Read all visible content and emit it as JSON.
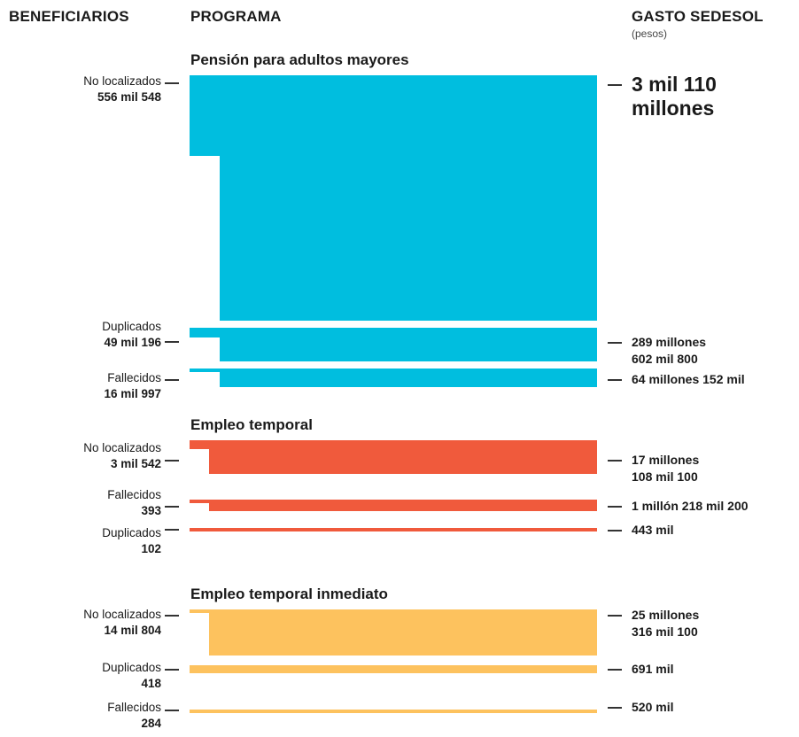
{
  "headers": {
    "beneficiarios": "BENEFICIARIOS",
    "programa": "PROGRAMA",
    "gasto": "GASTO SEDESOL",
    "gasto_sub": "(pesos)"
  },
  "chart_data": {
    "type": "bar",
    "programs": [
      {
        "name": "Pensión para adultos mayores",
        "color": "#00bedf",
        "rows": [
          {
            "category": "No localizados",
            "beneficiarios": "556 mil 548",
            "gasto": "3 mil 110 millones",
            "gasto_lines": [
              "3 mil 110",
              "millones"
            ],
            "gasto_pesos": 3110000000
          },
          {
            "category": "Duplicados",
            "beneficiarios": "49 mil 196",
            "gasto": "289 millones 602 mil 800",
            "gasto_lines": [
              "289 millones",
              "602 mil 800"
            ],
            "gasto_pesos": 289602800
          },
          {
            "category": "Fallecidos",
            "beneficiarios": "16 mil 997",
            "gasto": "64 millones 152 mil",
            "gasto_lines": [
              "64 millones 152 mil"
            ],
            "gasto_pesos": 64152000
          }
        ]
      },
      {
        "name": "Empleo temporal",
        "color": "#f05a3c",
        "rows": [
          {
            "category": "No localizados",
            "beneficiarios": "3 mil 542",
            "gasto": "17 millones 108 mil 100",
            "gasto_lines": [
              "17 millones",
              "108 mil 100"
            ],
            "gasto_pesos": 17108100
          },
          {
            "category": "Fallecidos",
            "beneficiarios": "393",
            "gasto": "1 millón 218 mil 200",
            "gasto_lines": [
              "1 millón 218 mil 200"
            ],
            "gasto_pesos": 1218200
          },
          {
            "category": "Duplicados",
            "beneficiarios": "102",
            "gasto": "443 mil",
            "gasto_lines": [
              "443 mil"
            ],
            "gasto_pesos": 443000
          }
        ]
      },
      {
        "name": "Empleo temporal inmediato",
        "color": "#fdc25e",
        "rows": [
          {
            "category": "No localizados",
            "beneficiarios": "14 mil 804",
            "gasto": "25 millones 316 mil 100",
            "gasto_lines": [
              "25 millones",
              "316 mil 100"
            ],
            "gasto_pesos": 25316100
          },
          {
            "category": "Duplicados",
            "beneficiarios": "418",
            "gasto": "691 mil",
            "gasto_lines": [
              "691 mil"
            ],
            "gasto_pesos": 691000
          },
          {
            "category": "Fallecidos",
            "beneficiarios": "284",
            "gasto": "520 mil",
            "gasto_lines": [
              "520 mil"
            ],
            "gasto_pesos": 520000
          }
        ]
      }
    ]
  }
}
